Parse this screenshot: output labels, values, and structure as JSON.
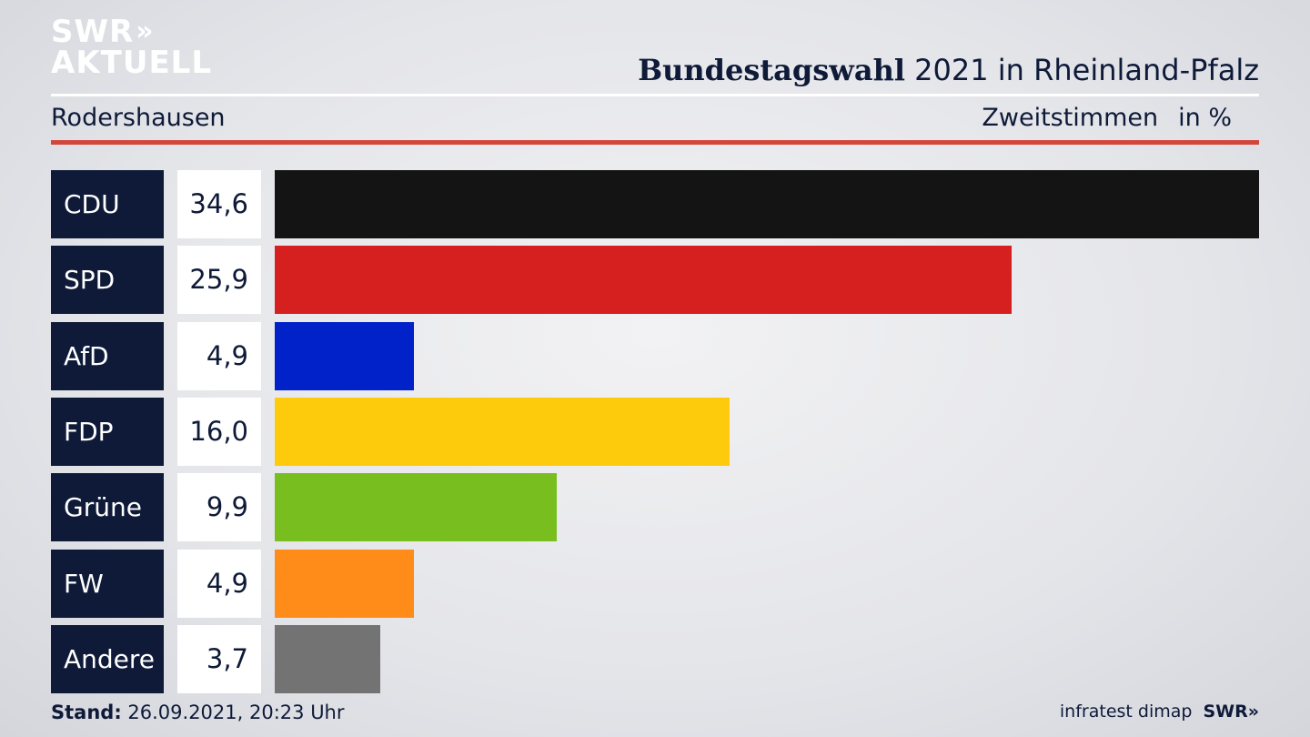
{
  "logo": {
    "line1": "SWR",
    "chevrons": "»",
    "line2": "AKTUELL"
  },
  "header": {
    "title_bold": "Bundestagswahl",
    "title_rest": "2021 in Rheinland-Pfalz",
    "location": "Rodershausen",
    "measure": "Zweitstimmen",
    "unit": "in %"
  },
  "chart_data": {
    "type": "bar",
    "orientation": "horizontal",
    "categories": [
      "CDU",
      "SPD",
      "AfD",
      "FDP",
      "Grüne",
      "FW",
      "Andere"
    ],
    "values": [
      34.6,
      25.9,
      4.9,
      16.0,
      9.9,
      4.9,
      3.7
    ],
    "value_labels": [
      "34,6",
      "25,9",
      "4,9",
      "16,0",
      "9,9",
      "4,9",
      "3,7"
    ],
    "colors": [
      "#141414",
      "#d62020",
      "#0022c8",
      "#fecb0c",
      "#78be1e",
      "#ff8c19",
      "#737373"
    ],
    "xlim": [
      0,
      34.6
    ]
  },
  "footer": {
    "stand_label": "Stand:",
    "stand_value": "26.09.2021, 20:23 Uhr",
    "source": "infratest dimap",
    "brand": "SWR»"
  }
}
